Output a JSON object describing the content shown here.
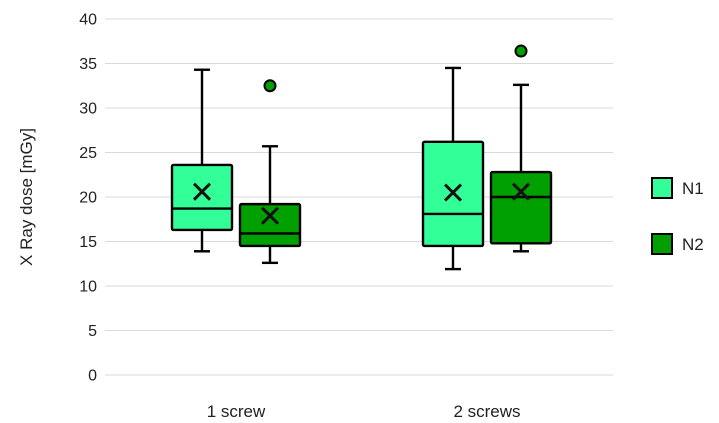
{
  "colors": {
    "N1": "#33ff99",
    "N2": "#00a000",
    "outline": "#000000",
    "grid": "#d9d9d9",
    "mean_marker": "#111111"
  },
  "chart_data": {
    "type": "box",
    "title": "",
    "xlabel": "",
    "ylabel": "X Ray dose [mGy]",
    "ylim": [
      0,
      40
    ],
    "yticks": [
      0,
      5,
      10,
      15,
      20,
      25,
      30,
      35,
      40
    ],
    "ytick_labels": [
      "0",
      "5",
      "10",
      "15",
      "20",
      "25",
      "30",
      "35",
      "40"
    ],
    "grid": true,
    "legend_position": "right",
    "categories": [
      "1 screw",
      "2 screws"
    ],
    "series": [
      {
        "name": "N1",
        "color": "#33ff99",
        "boxes": [
          {
            "category": "1 screw",
            "whisker_low": 13.9,
            "q1": 16.3,
            "median": 18.7,
            "q3": 23.6,
            "whisker_high": 34.3,
            "mean": 20.6,
            "outliers": []
          },
          {
            "category": "2 screws",
            "whisker_low": 11.9,
            "q1": 14.5,
            "median": 18.1,
            "q3": 26.2,
            "whisker_high": 34.5,
            "mean": 20.5,
            "outliers": []
          }
        ]
      },
      {
        "name": "N2",
        "color": "#00a000",
        "boxes": [
          {
            "category": "1 screw",
            "whisker_low": 12.6,
            "q1": 14.5,
            "median": 15.9,
            "q3": 19.2,
            "whisker_high": 25.7,
            "mean": 17.9,
            "outliers": [
              32.5
            ]
          },
          {
            "category": "2 screws",
            "whisker_low": 13.9,
            "q1": 14.8,
            "median": 20.0,
            "q3": 22.8,
            "whisker_high": 32.6,
            "mean": 20.6,
            "outliers": [
              36.4
            ]
          }
        ]
      }
    ]
  }
}
